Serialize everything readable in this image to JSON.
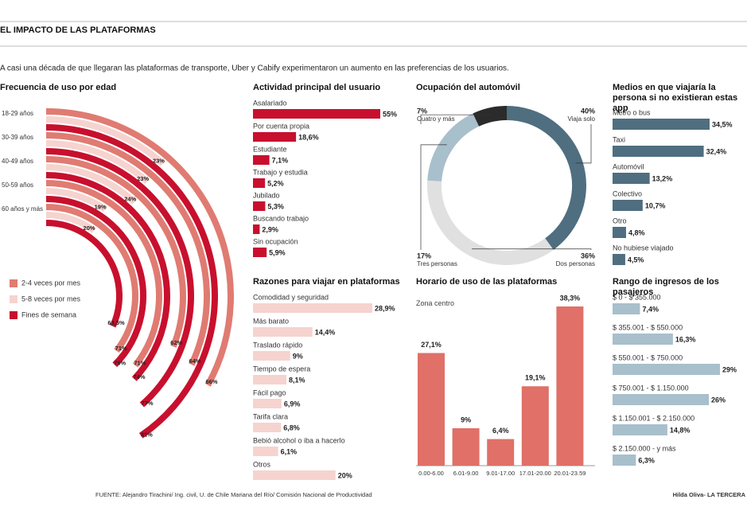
{
  "header": {
    "title": "EL IMPACTO DE LAS PLATAFORMAS",
    "subtitle": "A casi una década de que llegaran las plataformas de transporte, Uber y Cabify experimentaron un aumento en las preferencias de los usuarios."
  },
  "footer": {
    "source": "FUENTE: Alejandro Tirachini/ Ing. civil, U. de Chile Mariana del Río/ Comisión Nacional de Productividad",
    "credit": "Hilda Oliva- LA TERCERA"
  },
  "chart_data": [
    {
      "type": "radial_bar",
      "title": "Frecuencia de uso por edad",
      "categories": [
        "18-29 años",
        "30-39 años",
        "40-49 años",
        "50-59 años",
        "60 años y más"
      ],
      "series": [
        {
          "name": "2-4 veces por mes",
          "color": "#e07b72",
          "values": [
            66,
            64,
            62,
            71,
            71
          ],
          "value_labels": [
            "66%",
            "64%",
            "62%",
            "71%",
            "71%"
          ]
        },
        {
          "name": "5-8 veces por mes",
          "color": "#f6d3cf",
          "values": [
            23,
            23,
            24,
            19,
            20
          ],
          "value_labels": [
            "23%",
            "23%",
            "24%",
            "19%",
            "20%"
          ]
        },
        {
          "name": "Fines de semana",
          "color": "#c8102e",
          "values": [
            81,
            77,
            74,
            75,
            63.5
          ],
          "value_labels": [
            "81%",
            "77%",
            "74%",
            "75%",
            "63,5%"
          ]
        }
      ]
    },
    {
      "type": "bar",
      "orientation": "horizontal",
      "title": "Actividad principal del usuario",
      "color": "#c8102e",
      "categories": [
        "Asalariado",
        "Por cuenta propia",
        "Estudiante",
        "Trabajo y estudia",
        "Jubilado",
        "Buscando trabajo",
        "Sin ocupación"
      ],
      "values": [
        55,
        18.6,
        7.1,
        5.2,
        5.3,
        2.9,
        5.9
      ],
      "value_labels": [
        "55%",
        "18,6%",
        "7,1%",
        "5,2%",
        "5,3%",
        "2,9%",
        "5,9%"
      ]
    },
    {
      "type": "donut",
      "title": "Ocupación del automóvil",
      "categories": [
        "Viaja solo",
        "Dos personas",
        "Tres personas",
        "Cuatro y más"
      ],
      "values": [
        40,
        36,
        17,
        7
      ],
      "value_labels": [
        "40%",
        "36%",
        "17%",
        "7%"
      ],
      "colors": [
        "#4f6e80",
        "#e0e0e0",
        "#a8bfcc",
        "#2b2b2b"
      ]
    },
    {
      "type": "bar",
      "orientation": "horizontal",
      "title": "Medios en que viajaría la persona si no existieran estas app",
      "color": "#4f6e80",
      "categories": [
        "Metro o bus",
        "Taxi",
        "Automóvil",
        "Colectivo",
        "Otro",
        "No hubiese viajado"
      ],
      "values": [
        34.5,
        32.4,
        13.2,
        10.7,
        4.8,
        4.5
      ],
      "value_labels": [
        "34,5%",
        "32,4%",
        "13,2%",
        "10,7%",
        "4,8%",
        "4,5%"
      ]
    },
    {
      "type": "bar",
      "orientation": "horizontal",
      "title": "Razones para viajar en plataformas",
      "color": "#f6d3cf",
      "categories": [
        "Comodidad y seguridad",
        "Más barato",
        "Traslado rápido",
        "Tiempo de espera",
        "Fácil pago",
        "Tarifa clara",
        "Bebió alcohol o iba a hacerlo",
        "Otros"
      ],
      "values": [
        28.9,
        14.4,
        9,
        8.1,
        6.9,
        6.8,
        6.1,
        20
      ],
      "value_labels": [
        "28,9%",
        "14,4%",
        "9%",
        "8,1%",
        "6,9%",
        "6,8%",
        "6,1%",
        "20%"
      ]
    },
    {
      "type": "bar",
      "orientation": "vertical",
      "title": "Horario de uso de las plataformas",
      "subtitle": "Zona centro",
      "color": "#e07068",
      "categories": [
        "0.00-6.00",
        "6.01-9.00",
        "9.01-17.00",
        "17.01-20.00",
        "20.01-23.59"
      ],
      "values": [
        27.1,
        9,
        6.4,
        19.1,
        38.3
      ],
      "value_labels": [
        "27,1%",
        "9%",
        "6,4%",
        "19,1%",
        "38,3%"
      ]
    },
    {
      "type": "bar",
      "orientation": "horizontal",
      "title": "Rango de ingresos de los pasajeros",
      "color": "#a8bfcc",
      "categories": [
        "$ 0 - $ 355.000",
        "$ 355.001 - $ 550.000",
        "$ 550.001 - $ 750.000",
        "$ 750.001 - $ 1.150.000",
        "$ 1.150.001 - $ 2.150.000",
        "$ 2.150.000 - y más"
      ],
      "values": [
        7.4,
        16.3,
        29,
        26,
        14.8,
        6.3
      ],
      "value_labels": [
        "7,4%",
        "16,3%",
        "29%",
        "26%",
        "14,8%",
        "6,3%"
      ]
    }
  ]
}
